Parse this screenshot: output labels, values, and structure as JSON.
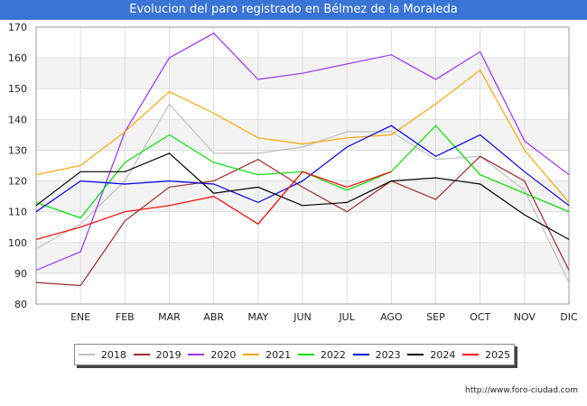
{
  "chart_data": {
    "type": "line",
    "title": "Evolucion del paro registrado en Bélmez de la Moraleda",
    "categories": [
      "",
      "ENE",
      "FEB",
      "MAR",
      "ABR",
      "MAY",
      "JUN",
      "JUL",
      "AGO",
      "SEP",
      "OCT",
      "NOV",
      "DIC"
    ],
    "ylim": [
      80,
      170
    ],
    "yticks": [
      80,
      90,
      100,
      110,
      120,
      130,
      140,
      150,
      160,
      170
    ],
    "xlabel": "",
    "ylabel": "",
    "grid": true,
    "legend_position": "bottom",
    "series": [
      {
        "name": "2018",
        "color": "#c0c0c0",
        "values": [
          98,
          106,
          120,
          145,
          129,
          129,
          131,
          136,
          136,
          127,
          128,
          117,
          87
        ]
      },
      {
        "name": "2019",
        "color": "#a52a2a",
        "values": [
          87,
          86,
          107,
          118,
          120,
          127,
          118,
          110,
          120,
          114,
          128,
          120,
          91
        ]
      },
      {
        "name": "2020",
        "color": "#9b30ff",
        "values": [
          91,
          97,
          136,
          160,
          168,
          153,
          155,
          158,
          161,
          153,
          162,
          133,
          122
        ]
      },
      {
        "name": "2021",
        "color": "#ffa500",
        "values": [
          122,
          125,
          136,
          149,
          142,
          134,
          132,
          134,
          135,
          145,
          156,
          130,
          113
        ]
      },
      {
        "name": "2022",
        "color": "#00e000",
        "values": [
          113,
          108,
          126,
          135,
          126,
          122,
          123,
          117,
          123,
          138,
          122,
          116,
          110
        ]
      },
      {
        "name": "2023",
        "color": "#0000ee",
        "values": [
          110,
          120,
          119,
          120,
          119,
          113,
          120,
          131,
          138,
          128,
          135,
          123,
          112
        ]
      },
      {
        "name": "2024",
        "color": "#000000",
        "values": [
          112,
          123,
          123,
          129,
          116,
          118,
          112,
          113,
          120,
          121,
          119,
          109,
          101
        ]
      },
      {
        "name": "2025",
        "color": "#ff0000",
        "values": [
          101,
          105,
          110,
          112,
          115,
          106,
          123,
          118,
          123,
          null,
          null,
          null,
          null
        ]
      }
    ]
  },
  "footer": {
    "url": "http://www.foro-ciudad.com"
  }
}
